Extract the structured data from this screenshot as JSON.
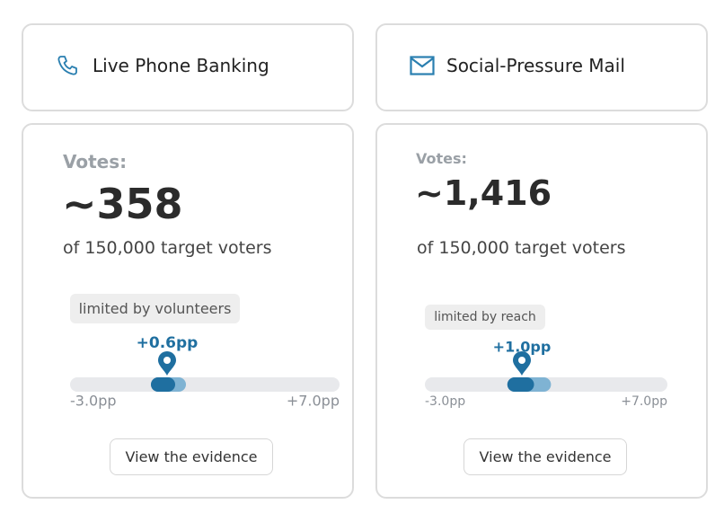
{
  "cards": [
    {
      "title": "Live Phone Banking",
      "votes_label": "Votes:",
      "votes": "~358",
      "target": "of 150,000 target voters",
      "limit": "limited by volunteers",
      "effect": {
        "value": 0.6,
        "label": "+0.6pp"
      },
      "scale": [
        {
          "value": -3.0,
          "label": "-3.0pp"
        },
        {
          "value": 7.0,
          "label": "+7.0pp"
        }
      ],
      "inner": [
        0.0,
        0.9
      ],
      "outer": [
        0.0,
        1.3
      ],
      "button": "View the evidence"
    },
    {
      "title": "Social-Pressure Mail",
      "votes_label": "Votes:",
      "votes": "~1,416",
      "target": "of 150,000 target voters",
      "limit": "limited by reach",
      "effect": {
        "value": 1.0,
        "label": "+1.0pp"
      },
      "scale": [
        {
          "value": -3.0,
          "label": "-3.0pp"
        },
        {
          "value": 7.0,
          "label": "+7.0pp"
        }
      ],
      "inner": [
        0.4,
        1.5
      ],
      "outer": [
        0.4,
        2.2
      ],
      "button": "View the evidence"
    }
  ]
}
